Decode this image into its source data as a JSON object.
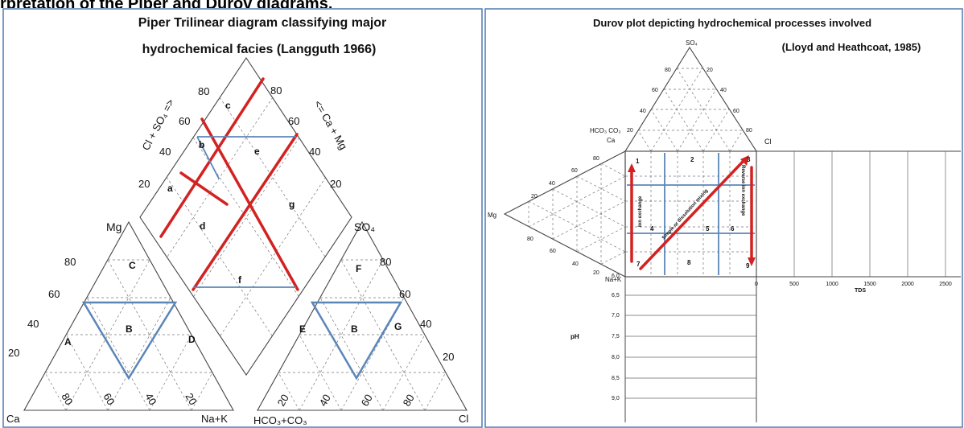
{
  "header": {
    "text": "rpretation of the Piper and Durov diagrams."
  },
  "piper": {
    "title_line1": "Piper Trilinear diagram classifying major",
    "title_line2": "hydrochemical facies (Langguth 1966)",
    "diamond_left_axis": "Cl + SO₄ =>",
    "diamond_right_axis": "<= Ca + Mg",
    "diamond_ticks_left": [
      "80",
      "60",
      "40",
      "20"
    ],
    "diamond_ticks_right": [
      "80",
      "60",
      "40",
      "20"
    ],
    "diamond_zones": [
      "a",
      "b",
      "c",
      "d",
      "e",
      "f",
      "g"
    ],
    "cation_apex": "Mg",
    "cation_base_left": "Ca",
    "cation_base_right": "Na+K",
    "cation_ticks_left": [
      "80",
      "60",
      "40",
      "20"
    ],
    "cation_ticks_bottom": [
      "80",
      "60",
      "40",
      "20"
    ],
    "cation_zones": [
      "A",
      "B",
      "C",
      "D"
    ],
    "anion_apex": "SO₄",
    "anion_base_left": "HCO₃+CO₃",
    "anion_base_right": "Cl",
    "anion_ticks_right": [
      "80",
      "60",
      "40",
      "20"
    ],
    "anion_ticks_bottom": [
      "20",
      "40",
      "60",
      "80"
    ],
    "anion_zones": [
      "E",
      "B",
      "F",
      "G"
    ]
  },
  "durov": {
    "title_line1": "Durov plot depicting hydrochemical processes involved",
    "title_line2": "(Lloyd and Heathcoat, 1985)",
    "top_apex": "SO₄",
    "top_left": "HCO₃ CO₃",
    "top_left2": "Ca",
    "top_right": "Cl",
    "left_apex": "Mg",
    "left_bottom": "Na+K",
    "top_ticks_left": [
      "80",
      "60",
      "40",
      "20"
    ],
    "top_ticks_right": [
      "20",
      "40",
      "60",
      "80"
    ],
    "left_ticks_upper": [
      "80",
      "60",
      "40",
      "20"
    ],
    "left_ticks_lower": [
      "80",
      "60",
      "40",
      "20"
    ],
    "cells": [
      "1",
      "2",
      "3",
      "4",
      "5",
      "6",
      "7",
      "8",
      "9"
    ],
    "arrow_left": "Ion exchange",
    "arrow_diag": "Simple or dissolution mixing",
    "arrow_right": "Reverse ion exchange",
    "tds_label": "TDS",
    "tds_ticks": [
      "0",
      "500",
      "1000",
      "1500",
      "2000",
      "2500"
    ],
    "ph_label": "pH",
    "ph_ticks": [
      "6,0",
      "6,5",
      "7,0",
      "7,5",
      "8,0",
      "8,5",
      "9,0"
    ]
  }
}
